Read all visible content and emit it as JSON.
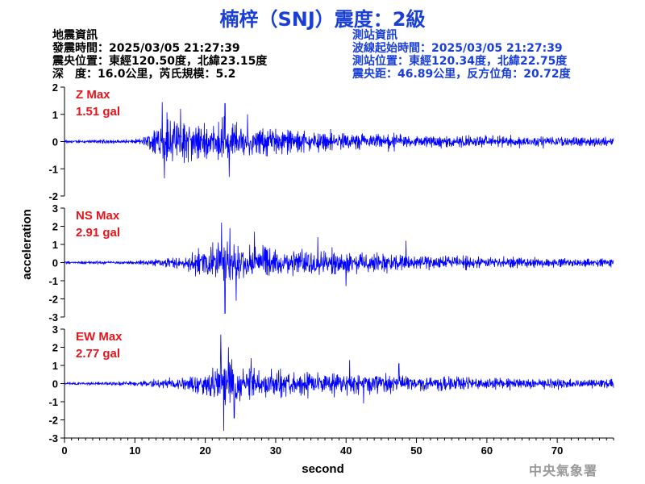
{
  "title": "楠梓（SNJ）震度：2級",
  "quake_info": {
    "heading": "地震資訊",
    "origin_time": "發震時間：2025/03/05 21:27:39",
    "epicenter": "震央位置：東經120.50度，北緯23.15度",
    "depth_magnitude": "深　度：16.0公里，芮氏規模：5.2"
  },
  "station_info": {
    "heading": "測站資訊",
    "wave_start": "波線起始時間：2025/03/05 21:27:39",
    "station_location": "測站位置：東經120.34度，北緯22.75度",
    "distance_azimuth": "震央距：46.89公里，反方位角：20.72度"
  },
  "agency": "中央氣象署",
  "colors": {
    "trace": "#0000ff",
    "max_label": "#e8141c",
    "title": "#1a3fd6",
    "axes": "#000000"
  },
  "chart_data": {
    "type": "line",
    "xlabel": "second",
    "ylabel": "acceleration",
    "xlim": [
      0,
      78
    ],
    "xticks": [
      0,
      10,
      20,
      30,
      40,
      50,
      60,
      70
    ],
    "duration_s": 78,
    "panels": [
      {
        "name": "Z",
        "label": "Z Max",
        "max_text": "1.51 gal",
        "ylim": [
          -2,
          2
        ],
        "yticks": [
          -2,
          -1,
          0,
          1,
          2
        ],
        "envelope": [
          [
            0,
            0.08
          ],
          [
            10,
            0.12
          ],
          [
            11,
            0.25
          ],
          [
            12,
            0.4
          ],
          [
            13,
            1.1
          ],
          [
            14,
            1.4
          ],
          [
            17,
            1.25
          ],
          [
            20,
            1.1
          ],
          [
            23,
            1.2
          ],
          [
            25,
            1.0
          ],
          [
            27,
            0.9
          ],
          [
            30,
            0.8
          ],
          [
            35,
            0.6
          ],
          [
            40,
            0.55
          ],
          [
            50,
            0.4
          ],
          [
            60,
            0.35
          ],
          [
            70,
            0.3
          ],
          [
            78,
            0.3
          ]
        ],
        "peaks": [
          [
            13.9,
            1.45
          ],
          [
            14.2,
            -1.35
          ],
          [
            16.5,
            1.2
          ],
          [
            22.8,
            1.4
          ],
          [
            23.4,
            -1.3
          ],
          [
            26,
            1.0
          ]
        ]
      },
      {
        "name": "NS",
        "label": "NS Max",
        "max_text": "2.91 gal",
        "ylim": [
          -3,
          3
        ],
        "yticks": [
          -3,
          -2,
          -1,
          0,
          1,
          2,
          3
        ],
        "envelope": [
          [
            0,
            0.12
          ],
          [
            10,
            0.15
          ],
          [
            14,
            0.35
          ],
          [
            17,
            0.7
          ],
          [
            19,
            1.1
          ],
          [
            21,
            1.6
          ],
          [
            22.5,
            2.1
          ],
          [
            24,
            1.8
          ],
          [
            26,
            1.6
          ],
          [
            28,
            1.5
          ],
          [
            32,
            1.2
          ],
          [
            36,
            1.1
          ],
          [
            40,
            1.0
          ],
          [
            45,
            0.9
          ],
          [
            50,
            0.7
          ],
          [
            60,
            0.5
          ],
          [
            70,
            0.4
          ],
          [
            78,
            0.35
          ]
        ],
        "peaks": [
          [
            22.3,
            2.2
          ],
          [
            22.8,
            -2.8
          ],
          [
            23.5,
            1.9
          ],
          [
            24.4,
            -2.1
          ],
          [
            27,
            1.7
          ],
          [
            36,
            1.4
          ],
          [
            40,
            -1.3
          ],
          [
            48.5,
            1.2
          ]
        ]
      },
      {
        "name": "EW",
        "label": "EW Max",
        "max_text": "2.77 gal",
        "ylim": [
          -3,
          3
        ],
        "yticks": [
          -3,
          -2,
          -1,
          0,
          1,
          2,
          3
        ],
        "envelope": [
          [
            0,
            0.12
          ],
          [
            10,
            0.18
          ],
          [
            14,
            0.5
          ],
          [
            17,
            0.7
          ],
          [
            20,
            1.0
          ],
          [
            21.5,
            2.0
          ],
          [
            22.5,
            2.4
          ],
          [
            24,
            1.9
          ],
          [
            26,
            1.5
          ],
          [
            28,
            1.3
          ],
          [
            32,
            1.1
          ],
          [
            36,
            1.05
          ],
          [
            40,
            1.0
          ],
          [
            45,
            0.9
          ],
          [
            50,
            0.75
          ],
          [
            60,
            0.5
          ],
          [
            70,
            0.45
          ],
          [
            78,
            0.4
          ]
        ],
        "peaks": [
          [
            22.2,
            2.7
          ],
          [
            22.6,
            -2.6
          ],
          [
            23.3,
            2.0
          ],
          [
            24.1,
            -1.9
          ],
          [
            26.5,
            1.4
          ],
          [
            40.5,
            1.3
          ],
          [
            42.5,
            -1.1
          ],
          [
            47.5,
            1.1
          ]
        ]
      }
    ]
  }
}
